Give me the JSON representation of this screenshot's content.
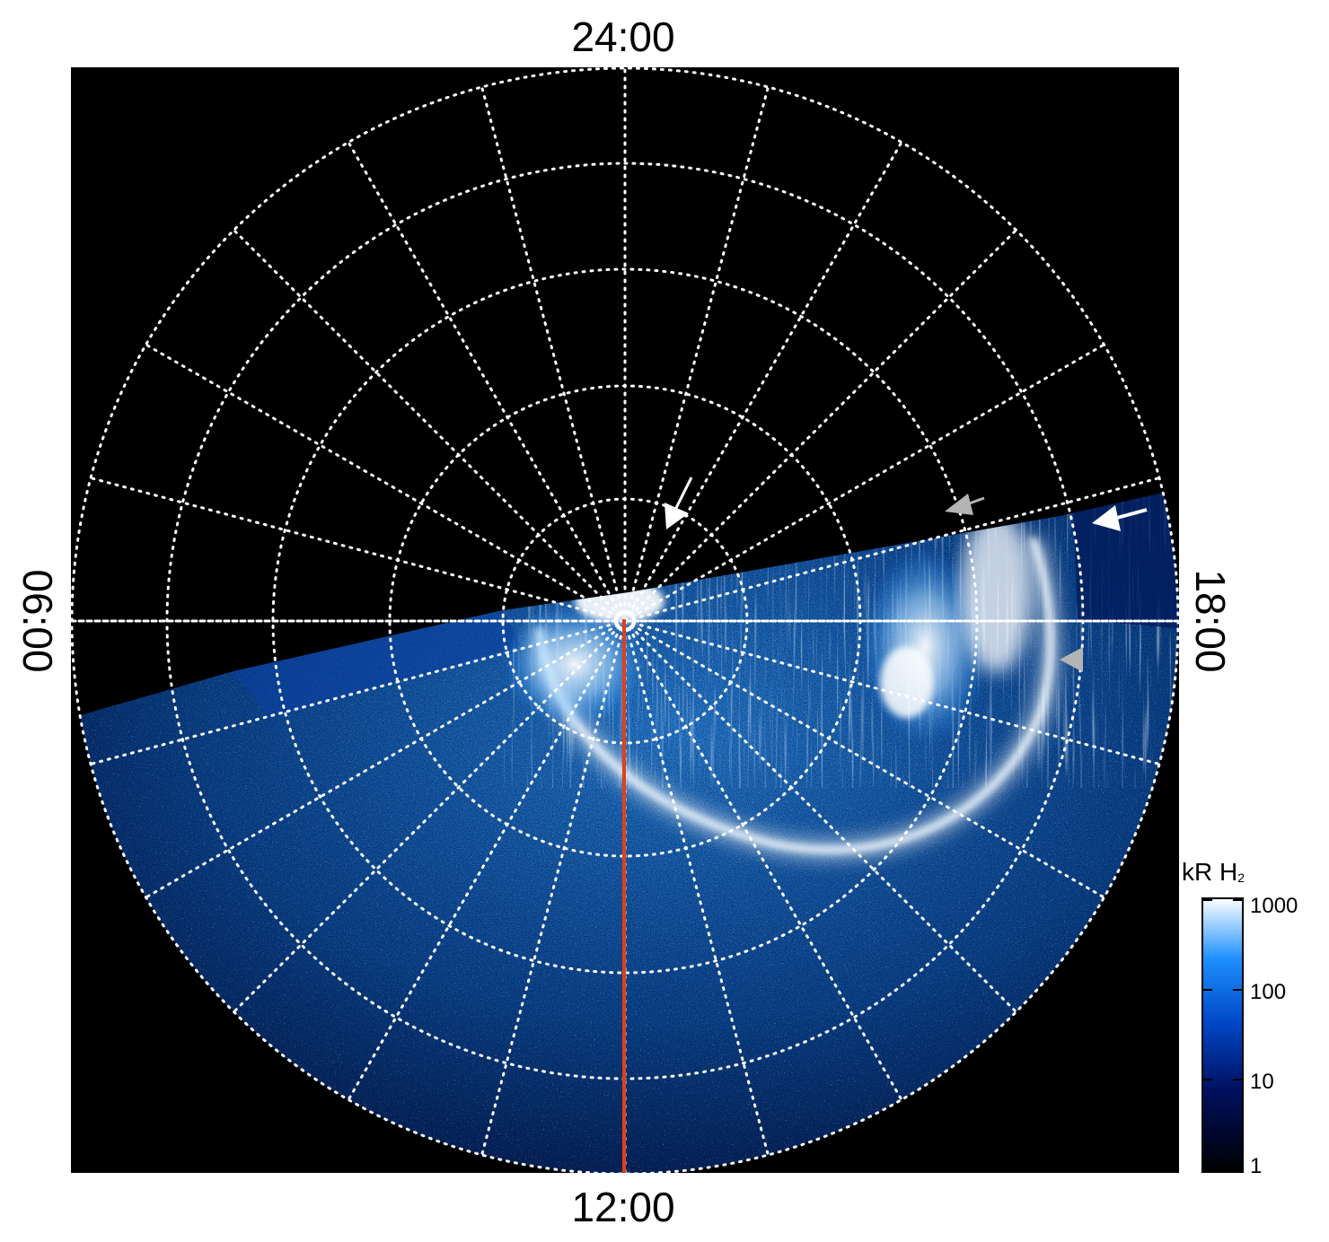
{
  "image": {
    "kind": "polar projection of Jupiter's ultraviolet aurora",
    "local_time_labels": {
      "top": "24:00",
      "bottom": "12:00",
      "left": "06:00",
      "right": "18:00"
    },
    "colorbar": {
      "unit": "kR H",
      "unit_subscript": "2",
      "scale": "log",
      "ticks": [
        "1000",
        "100",
        "10",
        "1"
      ],
      "colors": [
        "#000000",
        "#001060",
        "#0048c8",
        "#1e90ff",
        "#ffffff"
      ]
    },
    "colors": {
      "background_black": "#000000",
      "grid_dotted": "#ffffff",
      "meridian_line": "#e0401a",
      "arrow_white": "#ffffff",
      "arrow_gray": "#b4b4b4"
    },
    "annotations": {
      "white_arrows": 2,
      "gray_arrows": 2,
      "red_meridian_line": "12:00 local time"
    }
  }
}
